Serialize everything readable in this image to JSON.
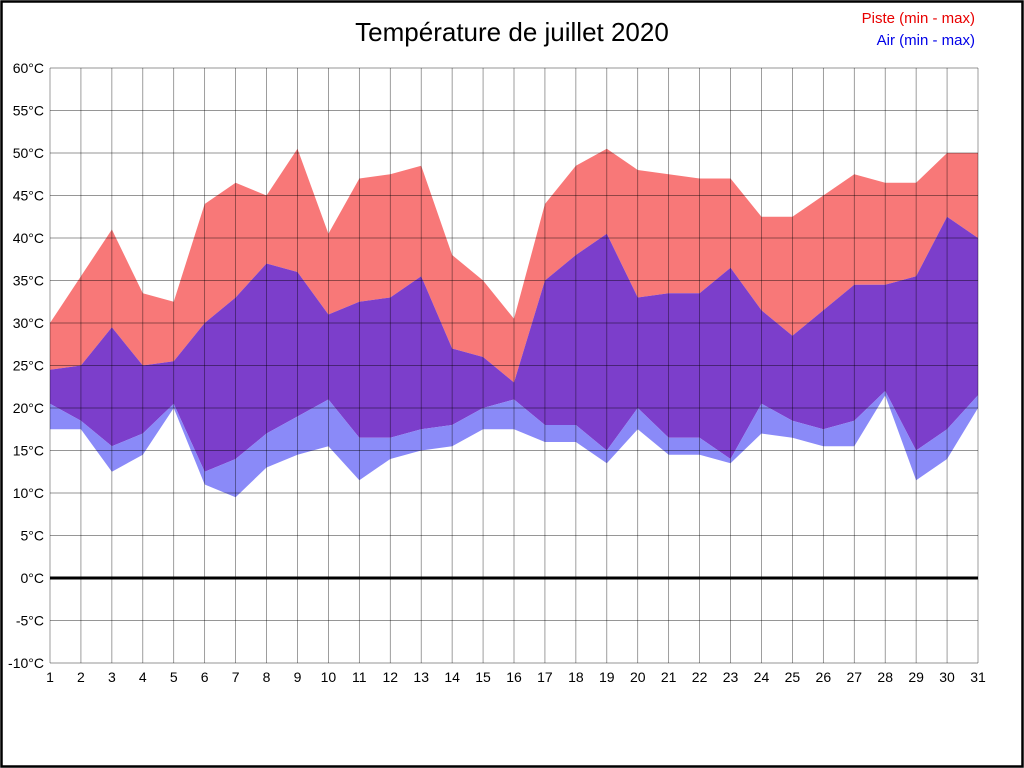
{
  "title": "Température de juillet 2020",
  "legend": {
    "piste": "Piste (min - max)",
    "air": "Air (min - max)"
  },
  "colors": {
    "piste_band": "#f87878",
    "air_band": "#8a8af8",
    "overlap_band": "#7c3ecb",
    "piste_text": "#e80000",
    "air_text": "#0000e8",
    "grid": "#000000",
    "zero_line": "#000000"
  },
  "chart_data": {
    "type": "area",
    "title": "Température de juillet 2020",
    "x": [
      1,
      2,
      3,
      4,
      5,
      6,
      7,
      8,
      9,
      10,
      11,
      12,
      13,
      14,
      15,
      16,
      17,
      18,
      19,
      20,
      21,
      22,
      23,
      24,
      25,
      26,
      27,
      28,
      29,
      30,
      31
    ],
    "series": [
      {
        "name": "Piste max",
        "values": [
          30,
          35.5,
          41,
          33.5,
          32.5,
          44,
          46.5,
          45,
          50.5,
          40.5,
          47,
          47.5,
          48.5,
          38,
          35,
          30.5,
          44,
          48.5,
          50.5,
          48,
          47.5,
          47,
          47,
          42.5,
          42.5,
          45,
          47.5,
          46.5,
          46.5,
          50,
          50
        ]
      },
      {
        "name": "Air max",
        "values": [
          24.5,
          25,
          29.5,
          25,
          25.5,
          30,
          33,
          37,
          36,
          31,
          32.5,
          33,
          35.5,
          27,
          26,
          23,
          35,
          38,
          40.5,
          33,
          33.5,
          33.5,
          36.5,
          31.5,
          28.5,
          31.5,
          34.5,
          34.5,
          35.5,
          42.5,
          40
        ]
      },
      {
        "name": "Piste min",
        "values": [
          20.5,
          18.5,
          15.5,
          17,
          20.5,
          12.5,
          14,
          17,
          19,
          21,
          16.5,
          16.5,
          17.5,
          18,
          20,
          21,
          18,
          18,
          15,
          20,
          16.5,
          16.5,
          14,
          20.5,
          18.5,
          17.5,
          18.5,
          22,
          15,
          17.5,
          21.5
        ]
      },
      {
        "name": "Air min",
        "values": [
          17.5,
          17.5,
          12.5,
          14.5,
          20,
          11,
          9.5,
          13,
          14.5,
          15.5,
          11.5,
          14,
          15,
          15.5,
          17.5,
          17.5,
          16,
          16,
          13.5,
          17.5,
          14.5,
          14.5,
          13.5,
          17,
          16.5,
          15.5,
          15.5,
          21.5,
          11.5,
          14,
          20
        ]
      }
    ],
    "ylim": [
      -10,
      60
    ],
    "y_tick_step": 5,
    "y_tick_suffix": "°C",
    "grid": true,
    "legend_position": "top-right",
    "zero_line_emphasized": true
  }
}
